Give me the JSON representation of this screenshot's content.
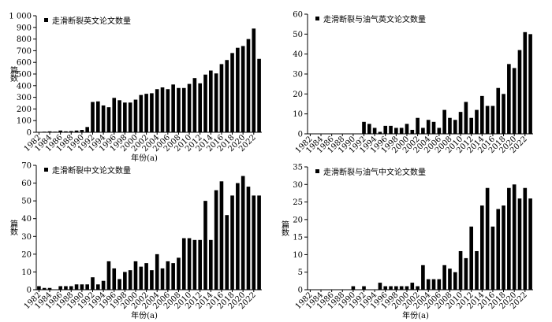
{
  "chart_data": [
    {
      "type": "bar",
      "legend": "走滑断裂英文论文数量",
      "xlabel": "年份(a)",
      "ylabel": "篇数",
      "color": "#000000",
      "categories": [
        "1982",
        null,
        "1984",
        null,
        "1986",
        null,
        "1988",
        null,
        "1990",
        null,
        "1992",
        null,
        "1994",
        null,
        "1996",
        null,
        "1998",
        null,
        "2000",
        null,
        "2002",
        null,
        "2004",
        null,
        "2006",
        null,
        "2008",
        null,
        "2010",
        null,
        "2012",
        null,
        "2014",
        null,
        "2016",
        null,
        "2018",
        null,
        "2020",
        null,
        "2022",
        null
      ],
      "values": [
        3,
        5,
        8,
        5,
        15,
        8,
        10,
        15,
        20,
        45,
        260,
        265,
        230,
        215,
        295,
        275,
        255,
        255,
        280,
        320,
        330,
        335,
        370,
        385,
        370,
        410,
        380,
        380,
        415,
        465,
        420,
        495,
        530,
        505,
        585,
        620,
        680,
        725,
        740,
        800,
        890,
        630
      ],
      "ylim": [
        0,
        1000
      ],
      "yticks": [
        0,
        100,
        200,
        300,
        400,
        500,
        600,
        700,
        800,
        900,
        {
          "value": 1000,
          "label": "1 000"
        }
      ]
    },
    {
      "type": "bar",
      "legend": "走滑断裂与油气英文论文数量",
      "color": "#000000",
      "categories": [
        "1982",
        null,
        "1984",
        null,
        "1986",
        null,
        "1988",
        null,
        "1990",
        null,
        "1992",
        null,
        "1994",
        null,
        "1996",
        null,
        "1998",
        null,
        "2000",
        null,
        "2002",
        null,
        "2004",
        null,
        "2006",
        null,
        "2008",
        null,
        "2010",
        null,
        "2012",
        null,
        "2014",
        null,
        "2016",
        null,
        "2018",
        null,
        "2020",
        null,
        "2022",
        null
      ],
      "values": [
        0,
        0,
        0,
        0,
        0,
        0,
        0,
        0,
        0,
        0,
        6,
        5,
        3,
        1,
        4,
        4,
        3,
        3,
        5,
        2,
        8,
        3,
        7,
        6,
        3,
        12,
        8,
        7,
        11,
        16,
        8,
        12,
        19,
        14,
        14,
        23,
        20,
        35,
        33,
        42,
        51,
        50
      ],
      "ylim": [
        0,
        60
      ],
      "yticks": [
        0,
        10,
        20,
        30,
        40,
        50,
        60
      ]
    },
    {
      "type": "bar",
      "legend": "走滑断裂中文论文数量",
      "xlabel": "年份(a)",
      "ylabel": "篇数",
      "color": "#000000",
      "categories": [
        "1982",
        null,
        "1984",
        null,
        "1986",
        null,
        "1988",
        null,
        "1990",
        null,
        "1992",
        null,
        "1994",
        null,
        "1996",
        null,
        "1998",
        null,
        "2000",
        null,
        "2002",
        null,
        "2004",
        null,
        "2006",
        null,
        "2008",
        null,
        "2010",
        null,
        "2012",
        null,
        "2014",
        null,
        "2016",
        null,
        "2018",
        null,
        "2020",
        null,
        "2022",
        null
      ],
      "values": [
        2,
        1,
        1,
        0,
        2,
        2,
        2,
        3,
        3,
        3,
        7,
        3,
        5,
        16,
        12,
        6,
        10,
        11,
        16,
        13,
        15,
        11,
        20,
        12,
        16,
        15,
        18,
        29,
        29,
        28,
        28,
        50,
        28,
        56,
        61,
        42,
        53,
        60,
        64,
        58,
        53,
        53
      ],
      "ylim": [
        0,
        70
      ],
      "yticks": [
        0,
        10,
        20,
        30,
        40,
        50,
        60,
        70
      ]
    },
    {
      "type": "bar",
      "legend": "走滑断裂与油气中文论文数量",
      "xlabel": "年份(a)",
      "ylabel": "篇数",
      "color": "#000000",
      "categories": [
        "1982",
        null,
        "1984",
        null,
        "1986",
        null,
        "1988",
        null,
        "1990",
        null,
        "1992",
        null,
        "1994",
        null,
        "1996",
        null,
        "1998",
        null,
        "2000",
        null,
        "2002",
        null,
        "2004",
        null,
        "2006",
        null,
        "2008",
        null,
        "2010",
        null,
        "2012",
        null,
        "2014",
        null,
        "2016",
        null,
        "2018",
        null,
        "2020",
        null,
        "2022",
        null
      ],
      "values": [
        0,
        0,
        0,
        0,
        0,
        0,
        0,
        0,
        1,
        0,
        1,
        0,
        0,
        2,
        1,
        1,
        1,
        1,
        1,
        2,
        1,
        7,
        3,
        3,
        3,
        7,
        6,
        5,
        11,
        9,
        18,
        11,
        24,
        29,
        18,
        23,
        24,
        29,
        30,
        26,
        29,
        26
      ],
      "ylim": [
        0,
        35
      ],
      "yticks": [
        0,
        5,
        10,
        15,
        20,
        25,
        30,
        35
      ]
    }
  ]
}
